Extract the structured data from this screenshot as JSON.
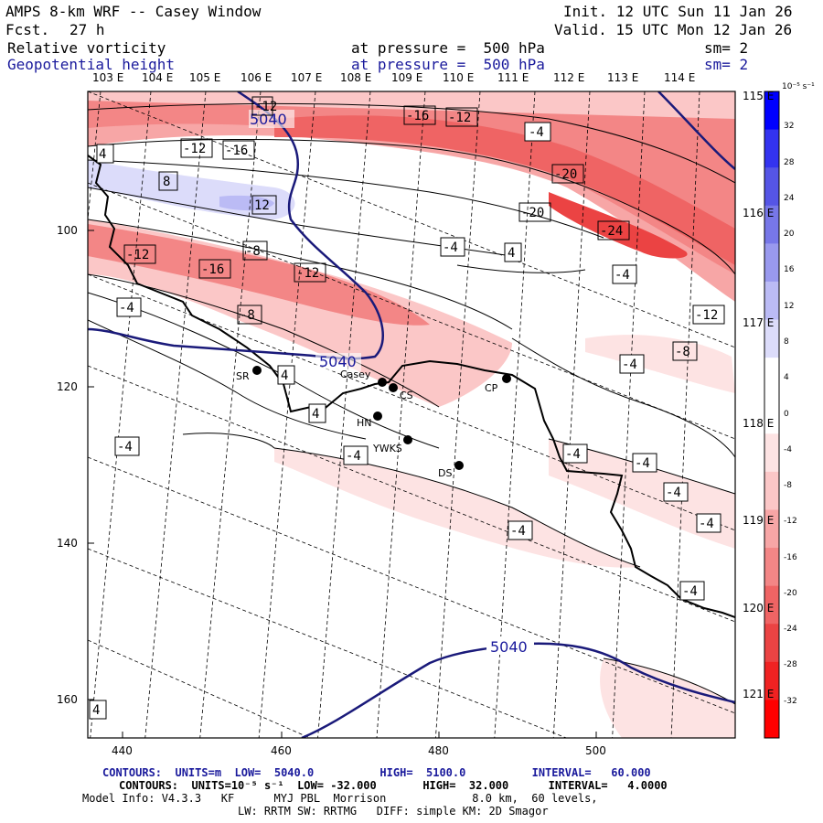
{
  "header": {
    "title": "AMPS 8-km WRF -- Casey Window",
    "fcst_label": "Fcst.",
    "fcst_value": "27 h",
    "init": "Init. 12 UTC Sun 11 Jan 26",
    "valid": "Valid. 15 UTC Mon 12 Jan 26",
    "field1": "Relative vorticity",
    "field1_pressure": "at pressure =  500 hPa",
    "field1_sm": "sm= 2",
    "field2": "Geopotential height",
    "field2_pressure": "at pressure =  500 hPa",
    "field2_sm": "sm= 2"
  },
  "lon_labels": [
    "103 E",
    "104 E",
    "105 E",
    "106 E",
    "107 E",
    "108 E",
    "109 E",
    "110 E",
    "111 E",
    "112 E",
    "113 E",
    "114 E"
  ],
  "lon_labels_right": [
    "115 E",
    "116 E",
    "117 E",
    "118 E",
    "119 E",
    "120 E",
    "121 E"
  ],
  "x_ticks": [
    "440",
    "460",
    "480",
    "500"
  ],
  "y_ticks": [
    "100",
    "120",
    "140",
    "160"
  ],
  "colorbar": {
    "unit": "10⁻⁵ s⁻¹",
    "labels": [
      "32",
      "28",
      "24",
      "20",
      "16",
      "12",
      "8",
      "4",
      "0",
      "-4",
      "-8",
      "-12",
      "-16",
      "-20",
      "-24",
      "-28",
      "-32"
    ],
    "colors": [
      "#0000ff",
      "#3333f0",
      "#5555e6",
      "#7777e8",
      "#9999ee",
      "#bbbbf5",
      "#dcdcfa",
      "#ffffff",
      "#ffffff",
      "#fde3e3",
      "#fbc7c7",
      "#f7a6a6",
      "#f38686",
      "#ef6464",
      "#eb4343",
      "#f02222",
      "#ff0000"
    ]
  },
  "stations": [
    {
      "name": "SR"
    },
    {
      "name": "Casey"
    },
    {
      "name": "CS"
    },
    {
      "name": "CP"
    },
    {
      "name": "HN"
    },
    {
      "name": "YWKS"
    },
    {
      "name": "DS"
    }
  ],
  "height_labels": [
    "5040",
    "5040",
    "5040"
  ],
  "vort_labels": [
    "-12",
    "-16",
    "-12",
    "-4",
    "4",
    "-12",
    "-16",
    "8",
    "12",
    "-20",
    "-20",
    "-24",
    "-4",
    "4",
    "-4",
    "-12",
    "-8",
    "-16",
    "-12",
    "-8",
    "-4",
    "-12",
    "-8",
    "-4",
    "4",
    "-4",
    "-4",
    "-4",
    "-4",
    "-4",
    "-4",
    "-4",
    "-4",
    "4",
    "4"
  ],
  "footer": {
    "line1": "CONTOURS:  UNITS=m  LOW=  5040.0          HIGH=  5100.0          INTERVAL=   60.000",
    "line2": "CONTOURS:  UNITS=10⁻⁵ s⁻¹  LOW= -32.000       HIGH=  32.000      INTERVAL=   4.0000",
    "line3": "Model Info: V4.3.3   KF      MYJ PBL  Morrison             8.0 km,  60 levels,",
    "line4": "LW: RRTM SW: RRTMG   DIFF: simple KM: 2D Smagor"
  }
}
